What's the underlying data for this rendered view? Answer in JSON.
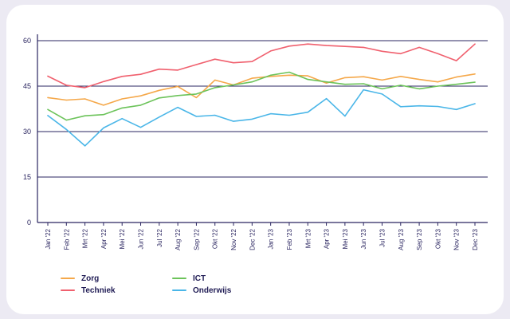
{
  "chart_data": {
    "type": "line",
    "title": "",
    "xlabel": "",
    "ylabel": "",
    "ylim": [
      0,
      60
    ],
    "yticks": [
      "0",
      "15",
      "30",
      "45",
      "60"
    ],
    "grid": "horizontal",
    "legend_position": "bottom-left",
    "categories": [
      "Jan '22",
      "Feb '22",
      "Mrt '22",
      "Apr '22",
      "Mei '22",
      "Jun '22",
      "Jul '22",
      "Aug '22",
      "Sep '22",
      "Okt '22",
      "Nov '22",
      "Dec '22",
      "Jan '23",
      "Feb '23",
      "Mrt '23",
      "Apr '23",
      "Mei '23",
      "Jun '23",
      "Jul '23",
      "Aug '23",
      "Sep '23",
      "Okt '23",
      "Nov '23",
      "Dec '23"
    ],
    "series": [
      {
        "name": "Zorg",
        "color": "#f5a84a",
        "values": [
          41.2,
          40.4,
          40.8,
          38.7,
          40.8,
          41.8,
          43.6,
          44.9,
          41.2,
          47.0,
          45.4,
          47.6,
          48.2,
          48.6,
          48.4,
          46.0,
          47.8,
          48.1,
          47.0,
          48.2,
          47.2,
          46.4,
          48.0,
          49.0
        ]
      },
      {
        "name": "Techniek",
        "color": "#f0606e",
        "values": [
          48.3,
          45.3,
          44.5,
          46.5,
          48.2,
          48.9,
          50.6,
          50.3,
          52.1,
          53.9,
          52.7,
          53.1,
          56.6,
          58.2,
          58.9,
          58.4,
          58.1,
          57.8,
          56.5,
          55.7,
          57.8,
          55.7,
          53.4,
          58.9
        ]
      },
      {
        "name": "ICT",
        "color": "#6cc35a",
        "values": [
          37.3,
          33.8,
          35.2,
          35.6,
          37.8,
          38.7,
          41.1,
          41.9,
          42.4,
          44.5,
          45.4,
          46.4,
          48.6,
          49.6,
          47.2,
          46.4,
          45.6,
          45.8,
          44.1,
          45.3,
          44.1,
          45.0,
          45.6,
          46.3
        ]
      },
      {
        "name": "Onderwijs",
        "color": "#4ab6e8",
        "values": [
          35.3,
          30.7,
          25.3,
          31.2,
          34.3,
          31.4,
          34.8,
          38.0,
          35.0,
          35.4,
          33.4,
          34.1,
          35.9,
          35.4,
          36.4,
          40.9,
          35.1,
          43.8,
          42.4,
          38.2,
          38.5,
          38.3,
          37.3,
          39.2
        ]
      }
    ],
    "colors": {
      "axis": "#2a2560",
      "grid": "#2a2560"
    }
  }
}
